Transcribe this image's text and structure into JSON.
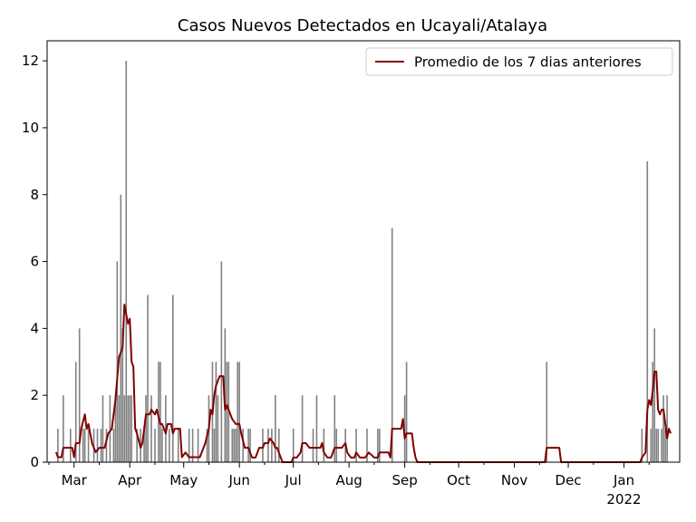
{
  "chart_data": {
    "type": "bar",
    "title": "Casos Nuevos Detectados en Ucayali/Atalaya",
    "xlabel": "",
    "ylabel": "",
    "ylim": [
      0,
      12.6
    ],
    "yticks": [
      0,
      2,
      4,
      6,
      8,
      10,
      12
    ],
    "xlim": [
      "2021-02-14",
      "2022-02-01"
    ],
    "xticks": [
      {
        "date": "2021-03-01",
        "label": "Mar"
      },
      {
        "date": "2021-04-01",
        "label": "Apr"
      },
      {
        "date": "2021-05-01",
        "label": "May"
      },
      {
        "date": "2021-06-01",
        "label": "Jun"
      },
      {
        "date": "2021-07-01",
        "label": "Jul"
      },
      {
        "date": "2021-08-01",
        "label": "Aug"
      },
      {
        "date": "2021-09-01",
        "label": "Sep"
      },
      {
        "date": "2021-10-01",
        "label": "Oct"
      },
      {
        "date": "2021-11-01",
        "label": "Nov"
      },
      {
        "date": "2021-12-01",
        "label": "Dec"
      },
      {
        "date": "2022-01-01",
        "label": "Jan",
        "sublabel": "2022"
      }
    ],
    "grid": false,
    "legend": {
      "position": "top-right",
      "entries": [
        "Promedio de los 7 dias anteriores"
      ]
    },
    "colors": {
      "bars": "#808080",
      "line": "#800000"
    },
    "series": [
      {
        "type": "bar",
        "points": [
          [
            "2021-02-20",
            1
          ],
          [
            "2021-02-23",
            2
          ],
          [
            "2021-02-27",
            1
          ],
          [
            "2021-03-02",
            3
          ],
          [
            "2021-03-04",
            4
          ],
          [
            "2021-03-06",
            1
          ],
          [
            "2021-03-07",
            1
          ],
          [
            "2021-03-09",
            1
          ],
          [
            "2021-03-12",
            1
          ],
          [
            "2021-03-14",
            1
          ],
          [
            "2021-03-16",
            1
          ],
          [
            "2021-03-17",
            2
          ],
          [
            "2021-03-19",
            1
          ],
          [
            "2021-03-21",
            2
          ],
          [
            "2021-03-23",
            1
          ],
          [
            "2021-03-24",
            2
          ],
          [
            "2021-03-25",
            6
          ],
          [
            "2021-03-26",
            2
          ],
          [
            "2021-03-27",
            8
          ],
          [
            "2021-03-28",
            4
          ],
          [
            "2021-03-29",
            2
          ],
          [
            "2021-03-30",
            12
          ],
          [
            "2021-03-31",
            2
          ],
          [
            "2021-04-01",
            2
          ],
          [
            "2021-04-02",
            2
          ],
          [
            "2021-04-05",
            1
          ],
          [
            "2021-04-07",
            1
          ],
          [
            "2021-04-09",
            1
          ],
          [
            "2021-04-10",
            2
          ],
          [
            "2021-04-11",
            5
          ],
          [
            "2021-04-13",
            2
          ],
          [
            "2021-04-15",
            1
          ],
          [
            "2021-04-17",
            3
          ],
          [
            "2021-04-18",
            3
          ],
          [
            "2021-04-19",
            1
          ],
          [
            "2021-04-21",
            2
          ],
          [
            "2021-04-23",
            1
          ],
          [
            "2021-04-25",
            5
          ],
          [
            "2021-04-28",
            1
          ],
          [
            "2021-05-04",
            1
          ],
          [
            "2021-05-06",
            1
          ],
          [
            "2021-05-09",
            1
          ],
          [
            "2021-05-14",
            1
          ],
          [
            "2021-05-15",
            2
          ],
          [
            "2021-05-17",
            3
          ],
          [
            "2021-05-18",
            1
          ],
          [
            "2021-05-19",
            3
          ],
          [
            "2021-05-20",
            2
          ],
          [
            "2021-05-22",
            6
          ],
          [
            "2021-05-24",
            4
          ],
          [
            "2021-05-25",
            3
          ],
          [
            "2021-05-26",
            3
          ],
          [
            "2021-05-28",
            1
          ],
          [
            "2021-05-29",
            1
          ],
          [
            "2021-05-30",
            1
          ],
          [
            "2021-05-31",
            3
          ],
          [
            "2021-06-01",
            3
          ],
          [
            "2021-06-03",
            1
          ],
          [
            "2021-06-06",
            1
          ],
          [
            "2021-06-07",
            1
          ],
          [
            "2021-06-14",
            1
          ],
          [
            "2021-06-17",
            1
          ],
          [
            "2021-06-19",
            1
          ],
          [
            "2021-06-21",
            2
          ],
          [
            "2021-06-23",
            1
          ],
          [
            "2021-07-01",
            1
          ],
          [
            "2021-07-06",
            2
          ],
          [
            "2021-07-12",
            1
          ],
          [
            "2021-07-14",
            2
          ],
          [
            "2021-07-18",
            1
          ],
          [
            "2021-07-24",
            2
          ],
          [
            "2021-07-25",
            1
          ],
          [
            "2021-07-30",
            1
          ],
          [
            "2021-08-05",
            1
          ],
          [
            "2021-08-11",
            1
          ],
          [
            "2021-08-17",
            1
          ],
          [
            "2021-08-18",
            1
          ],
          [
            "2021-08-25",
            7
          ],
          [
            "2021-09-01",
            2
          ],
          [
            "2021-09-02",
            3
          ],
          [
            "2021-11-19",
            3
          ],
          [
            "2022-01-11",
            1
          ],
          [
            "2022-01-14",
            9
          ],
          [
            "2022-01-16",
            1
          ],
          [
            "2022-01-17",
            3
          ],
          [
            "2022-01-18",
            4
          ],
          [
            "2022-01-19",
            1
          ],
          [
            "2022-01-20",
            1
          ],
          [
            "2022-01-22",
            1
          ],
          [
            "2022-01-23",
            2
          ],
          [
            "2022-01-24",
            1
          ],
          [
            "2022-01-25",
            2
          ]
        ]
      },
      {
        "type": "line",
        "name": "Promedio de los 7 dias anteriores",
        "points": [
          [
            "2021-02-19",
            0.3
          ],
          [
            "2021-02-20",
            0.15
          ],
          [
            "2021-02-22",
            0.15
          ],
          [
            "2021-02-23",
            0.43
          ],
          [
            "2021-02-28",
            0.43
          ],
          [
            "2021-03-01",
            0.15
          ],
          [
            "2021-03-02",
            0.57
          ],
          [
            "2021-03-04",
            0.57
          ],
          [
            "2021-03-05",
            1.0
          ],
          [
            "2021-03-07",
            1.43
          ],
          [
            "2021-03-08",
            1.0
          ],
          [
            "2021-03-09",
            1.14
          ],
          [
            "2021-03-11",
            0.57
          ],
          [
            "2021-03-13",
            0.3
          ],
          [
            "2021-03-15",
            0.43
          ],
          [
            "2021-03-16",
            0.43
          ],
          [
            "2021-03-18",
            0.43
          ],
          [
            "2021-03-20",
            0.86
          ],
          [
            "2021-03-22",
            1.0
          ],
          [
            "2021-03-24",
            1.86
          ],
          [
            "2021-03-26",
            3.14
          ],
          [
            "2021-03-28",
            3.43
          ],
          [
            "2021-03-29",
            4.71
          ],
          [
            "2021-03-31",
            4.14
          ],
          [
            "2021-04-01",
            4.29
          ],
          [
            "2021-04-02",
            3.0
          ],
          [
            "2021-04-03",
            2.86
          ],
          [
            "2021-04-04",
            1.0
          ],
          [
            "2021-04-05",
            0.86
          ],
          [
            "2021-04-07",
            0.43
          ],
          [
            "2021-04-08",
            0.57
          ],
          [
            "2021-04-10",
            1.43
          ],
          [
            "2021-04-12",
            1.43
          ],
          [
            "2021-04-13",
            1.57
          ],
          [
            "2021-04-15",
            1.43
          ],
          [
            "2021-04-16",
            1.57
          ],
          [
            "2021-04-18",
            1.14
          ],
          [
            "2021-04-19",
            1.14
          ],
          [
            "2021-04-21",
            0.86
          ],
          [
            "2021-04-22",
            1.14
          ],
          [
            "2021-04-24",
            1.14
          ],
          [
            "2021-04-25",
            0.86
          ],
          [
            "2021-04-26",
            1.0
          ],
          [
            "2021-04-29",
            1.0
          ],
          [
            "2021-04-30",
            0.15
          ],
          [
            "2021-05-02",
            0.29
          ],
          [
            "2021-05-04",
            0.15
          ],
          [
            "2021-05-10",
            0.15
          ],
          [
            "2021-05-13",
            0.57
          ],
          [
            "2021-05-15",
            1.0
          ],
          [
            "2021-05-16",
            1.57
          ],
          [
            "2021-05-17",
            1.43
          ],
          [
            "2021-05-18",
            2.0
          ],
          [
            "2021-05-19",
            2.29
          ],
          [
            "2021-05-21",
            2.57
          ],
          [
            "2021-05-23",
            2.57
          ],
          [
            "2021-05-24",
            1.57
          ],
          [
            "2021-05-25",
            1.71
          ],
          [
            "2021-05-26",
            1.57
          ],
          [
            "2021-05-28",
            1.29
          ],
          [
            "2021-05-30",
            1.14
          ],
          [
            "2021-06-01",
            1.14
          ],
          [
            "2021-06-02",
            0.86
          ],
          [
            "2021-06-04",
            0.43
          ],
          [
            "2021-06-06",
            0.43
          ],
          [
            "2021-06-08",
            0.14
          ],
          [
            "2021-06-10",
            0.14
          ],
          [
            "2021-06-12",
            0.43
          ],
          [
            "2021-06-14",
            0.43
          ],
          [
            "2021-06-15",
            0.57
          ],
          [
            "2021-06-17",
            0.57
          ],
          [
            "2021-06-18",
            0.71
          ],
          [
            "2021-06-20",
            0.57
          ],
          [
            "2021-06-21",
            0.43
          ],
          [
            "2021-06-22",
            0.43
          ],
          [
            "2021-06-24",
            0.14
          ],
          [
            "2021-06-25",
            0.0
          ],
          [
            "2021-06-30",
            0.0
          ],
          [
            "2021-07-01",
            0.14
          ],
          [
            "2021-07-03",
            0.14
          ],
          [
            "2021-07-05",
            0.29
          ],
          [
            "2021-07-06",
            0.57
          ],
          [
            "2021-07-08",
            0.57
          ],
          [
            "2021-07-10",
            0.43
          ],
          [
            "2021-07-13",
            0.43
          ],
          [
            "2021-07-14",
            0.43
          ],
          [
            "2021-07-16",
            0.43
          ],
          [
            "2021-07-17",
            0.57
          ],
          [
            "2021-07-18",
            0.29
          ],
          [
            "2021-07-20",
            0.14
          ],
          [
            "2021-07-22",
            0.14
          ],
          [
            "2021-07-24",
            0.43
          ],
          [
            "2021-07-28",
            0.43
          ],
          [
            "2021-07-30",
            0.57
          ],
          [
            "2021-07-31",
            0.29
          ],
          [
            "2021-08-02",
            0.14
          ],
          [
            "2021-08-04",
            0.14
          ],
          [
            "2021-08-05",
            0.29
          ],
          [
            "2021-08-07",
            0.14
          ],
          [
            "2021-08-10",
            0.14
          ],
          [
            "2021-08-12",
            0.29
          ],
          [
            "2021-08-15",
            0.14
          ],
          [
            "2021-08-17",
            0.14
          ],
          [
            "2021-08-18",
            0.29
          ],
          [
            "2021-08-23",
            0.29
          ],
          [
            "2021-08-24",
            0.14
          ],
          [
            "2021-08-25",
            1.0
          ],
          [
            "2021-08-30",
            1.0
          ],
          [
            "2021-08-31",
            1.29
          ],
          [
            "2021-09-01",
            0.71
          ],
          [
            "2021-09-02",
            0.86
          ],
          [
            "2021-09-05",
            0.86
          ],
          [
            "2021-09-06",
            0.43
          ],
          [
            "2021-09-07",
            0.14
          ],
          [
            "2021-09-08",
            0.0
          ],
          [
            "2021-11-18",
            0.0
          ],
          [
            "2021-11-19",
            0.43
          ],
          [
            "2021-11-26",
            0.43
          ],
          [
            "2021-11-27",
            0.0
          ],
          [
            "2022-01-10",
            0.0
          ],
          [
            "2022-01-11",
            0.14
          ],
          [
            "2022-01-13",
            0.29
          ],
          [
            "2022-01-14",
            1.57
          ],
          [
            "2022-01-15",
            1.86
          ],
          [
            "2022-01-16",
            1.71
          ],
          [
            "2022-01-17",
            2.14
          ],
          [
            "2022-01-18",
            2.71
          ],
          [
            "2022-01-19",
            2.71
          ],
          [
            "2022-01-20",
            1.57
          ],
          [
            "2022-01-21",
            1.43
          ],
          [
            "2022-01-22",
            1.57
          ],
          [
            "2022-01-23",
            1.57
          ],
          [
            "2022-01-24",
            1.14
          ],
          [
            "2022-01-25",
            0.71
          ],
          [
            "2022-01-26",
            1.0
          ],
          [
            "2022-01-27",
            0.86
          ]
        ]
      }
    ]
  }
}
